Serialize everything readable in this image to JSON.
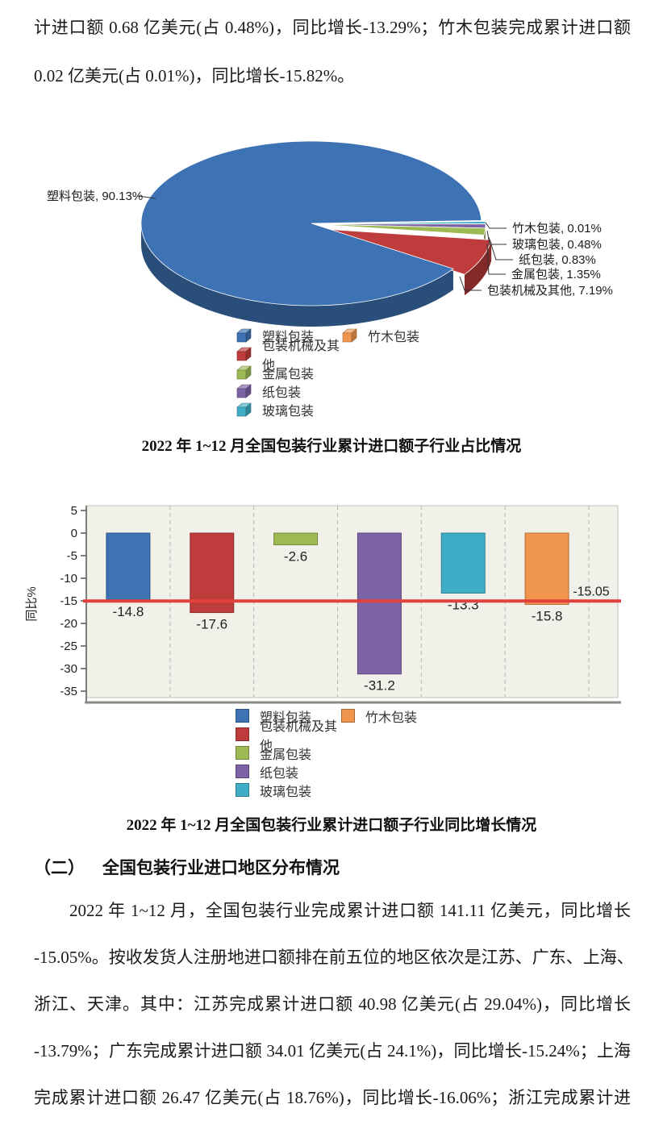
{
  "document": {
    "top_paragraph_lines": [
      "计进口额 0.68 亿美元(占 0.48%)，同比增长-13.29%；竹木包装完成累计进口额",
      "0.02 亿美元(占 0.01%)，同比增长-15.82%。"
    ],
    "section_heading": {
      "number": "（二）",
      "text": "全国包装行业进口地区分布情况"
    },
    "bottom_paragraph_lines": [
      "2022 年 1~12 月，全国包装行业完成累计进口额 141.11 亿美元，同比增长",
      "-15.05%。按收发货人注册地进口额排在前五位的地区依次是江苏、广东、上海、",
      "浙江、天津。其中：江苏完成累计进口额 40.98 亿美元(占 29.04%)，同比增长",
      "-13.79%；广东完成累计进口额 34.01 亿美元(占 24.1%)，同比增长-15.24%；上海",
      "完成累计进口额 26.47 亿美元(占 18.76%)，同比增长-16.06%；浙江完成累计进"
    ]
  },
  "chart_data": [
    {
      "type": "pie",
      "title": "2022 年 1~12 月全国包装行业累计进口额子行业占比情况",
      "unit": "%",
      "slices": [
        {
          "name": "塑料包装",
          "value": 90.13,
          "color": "#3d72b4"
        },
        {
          "name": "包装机械及其他",
          "value": 7.19,
          "color": "#bf3c3c"
        },
        {
          "name": "金属包装",
          "value": 1.35,
          "color": "#9db953"
        },
        {
          "name": "纸包装",
          "value": 0.83,
          "color": "#7c63a5"
        },
        {
          "name": "玻璃包装",
          "value": 0.48,
          "color": "#3fadc5"
        },
        {
          "name": "竹木包装",
          "value": 0.01,
          "color": "#ef954d"
        }
      ],
      "legend_position": "bottom"
    },
    {
      "type": "bar",
      "title": "2022 年 1~12 月全国包装行业累计进口额子行业同比增长情况",
      "ylabel": "同比%",
      "ylim": [
        -35,
        5
      ],
      "yticks": [
        5,
        0,
        -5,
        -10,
        -15,
        -20,
        -25,
        -30,
        -35
      ],
      "grid": "vertical-dashed",
      "categories": [
        "塑料包装",
        "包装机械及其他",
        "金属包装",
        "纸包装",
        "玻璃包装",
        "竹木包装"
      ],
      "values": [
        -14.8,
        -17.6,
        -2.6,
        -31.2,
        -13.3,
        -15.8
      ],
      "colors": [
        "#3d72b4",
        "#bf3c3c",
        "#9db953",
        "#7c63a5",
        "#3fadc5",
        "#ef954d"
      ],
      "reference_line": {
        "value": -15.05,
        "label": "-15.05",
        "color": "#e2403b"
      },
      "legend_position": "bottom"
    }
  ]
}
